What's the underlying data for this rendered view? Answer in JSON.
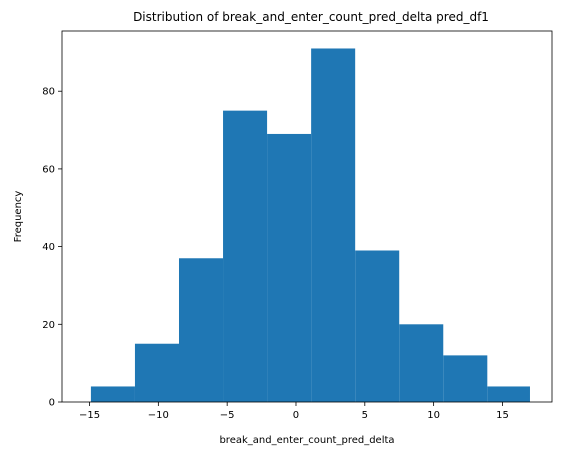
{
  "chart_data": {
    "type": "histogram",
    "title": "Distribution of break_and_enter_count_pred_delta pred_df1",
    "xlabel": "break_and_enter_count_pred_delta",
    "ylabel": "Frequency",
    "bin_edges": [
      -14.9,
      -11.7,
      -8.5,
      -5.3,
      -2.1,
      1.1,
      4.3,
      7.5,
      10.7,
      13.9,
      17.0
    ],
    "values": [
      4,
      15,
      37,
      75,
      69,
      91,
      39,
      20,
      12,
      4
    ],
    "xlim": [
      -17.0,
      18.6
    ],
    "ylim": [
      0,
      95.5
    ],
    "xticks": [
      -15,
      -10,
      -5,
      0,
      5,
      10,
      15
    ],
    "yticks": [
      0,
      20,
      40,
      60,
      80
    ],
    "bar_color": "#1f77b4",
    "grid": false,
    "legend": "none"
  }
}
